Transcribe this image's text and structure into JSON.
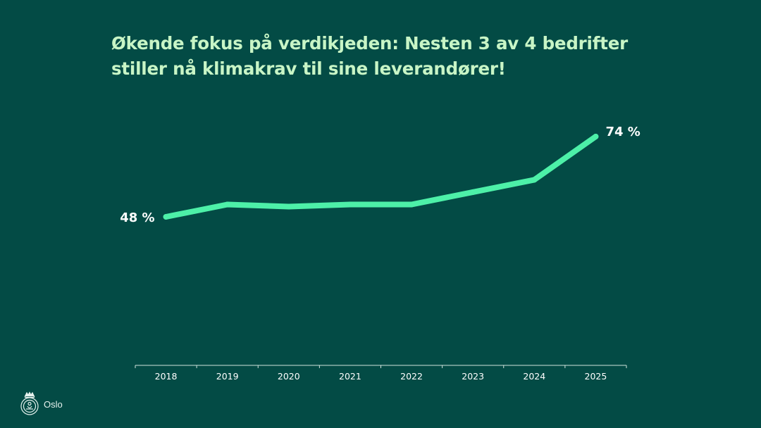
{
  "slide": {
    "title_line1": "Økende fokus på verdikjeden: Nesten 3 av 4 bedrifter",
    "title_line2": "stiller nå klimakrav til sine leverandører!",
    "brand": "Oslo",
    "icons": [
      "oslo-seal-icon"
    ]
  },
  "colors": {
    "background": "#034b45",
    "title": "#c8f5c6",
    "line": "#4df0a8",
    "axis": "#cfe3dc",
    "label": "#ffffff"
  },
  "chart_data": {
    "type": "line",
    "title": "Økende fokus på verdikjeden: Nesten 3 av 4 bedrifter stiller nå klimakrav til sine leverandører!",
    "xlabel": "",
    "ylabel": "",
    "categories": [
      "2018",
      "2019",
      "2020",
      "2021",
      "2022",
      "2023",
      "2024",
      "2025"
    ],
    "series": [
      {
        "values": [
          48,
          52,
          51.3,
          52,
          52,
          56,
          60,
          74
        ]
      }
    ],
    "annotations": [
      {
        "category": "2018",
        "text": "48 %"
      },
      {
        "category": "2025",
        "text": "74 %"
      }
    ],
    "ylim": [
      0,
      80
    ],
    "grid": false,
    "legend": "none"
  }
}
